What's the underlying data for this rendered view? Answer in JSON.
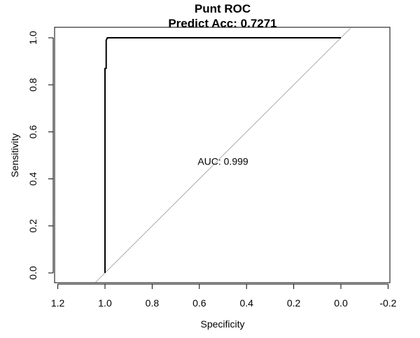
{
  "chart_data": {
    "type": "line",
    "title": "Punt ROC",
    "subtitle": "Predict Acc: 0.7271",
    "xlabel": "Specificity",
    "ylabel": "Sensitivity",
    "x_reversed": true,
    "xlim": [
      1.2,
      -0.2
    ],
    "ylim": [
      0.0,
      1.0
    ],
    "x_ticks": [
      1.2,
      1.0,
      0.8,
      0.6,
      0.4,
      0.2,
      0.0,
      -0.2
    ],
    "x_tick_labels": [
      "1.2",
      "1.0",
      "0.8",
      "0.6",
      "0.4",
      "0.2",
      "0.0",
      "-0.2"
    ],
    "y_ticks": [
      0.0,
      0.2,
      0.4,
      0.6,
      0.8,
      1.0
    ],
    "y_tick_labels": [
      "0.0",
      "0.2",
      "0.4",
      "0.6",
      "0.8",
      "1.0"
    ],
    "grid": false,
    "series": [
      {
        "x": [
          1.0,
          1.0,
          0.995,
          0.995,
          0.99,
          0.0
        ],
        "y": [
          0.0,
          0.87,
          0.87,
          0.99,
          1.0,
          1.0
        ],
        "color": "#000000"
      }
    ],
    "reference_line": {
      "x": [
        1.0,
        0.0
      ],
      "y": [
        0.0,
        1.0
      ],
      "color": "#aaaaaa"
    },
    "annotation": {
      "text": "AUC: 0.999",
      "x": 0.5,
      "y": 0.475
    }
  }
}
